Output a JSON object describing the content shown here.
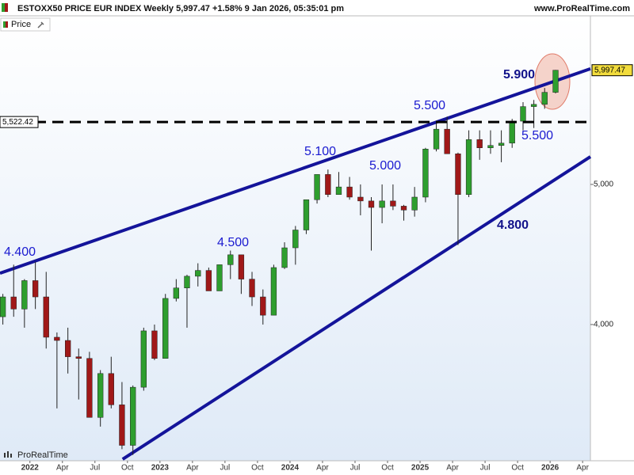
{
  "header": {
    "title": "ESTOXX50 PRICE EUR INDEX Weekly 5,997.47 +1.58% 9 Jan 2026, 05:35:01 pm",
    "site": "www.ProRealTime.com",
    "legend": "Price",
    "watermark": "ProRealTime"
  },
  "chart_data": {
    "type": "candlestick",
    "log_scale": true,
    "up_color": "#2e9e2e",
    "down_color": "#a01818",
    "x": [
      2021.792,
      2021.875,
      2021.958,
      2022.042,
      2022.125,
      2022.208,
      2022.292,
      2022.375,
      2022.458,
      2022.542,
      2022.625,
      2022.708,
      2022.792,
      2022.875,
      2022.958,
      2023.042,
      2023.125,
      2023.208,
      2023.292,
      2023.375,
      2023.458,
      2023.542,
      2023.625,
      2023.708,
      2023.792,
      2023.875,
      2023.958,
      2024.042,
      2024.125,
      2024.208,
      2024.292,
      2024.375,
      2024.458,
      2024.542,
      2024.625,
      2024.708,
      2024.792,
      2024.875,
      2024.958,
      2025.042,
      2025.125,
      2025.208,
      2025.292,
      2025.375,
      2025.458,
      2025.542,
      2025.625,
      2025.708,
      2025.792,
      2025.875,
      2025.958,
      2026.042
    ],
    "open": [
      4050,
      4180,
      4100,
      4290,
      4180,
      3920,
      3900,
      3800,
      3790,
      3450,
      3700,
      3520,
      3300,
      3620,
      3960,
      3790,
      4170,
      4240,
      4320,
      4360,
      4220,
      4400,
      4470,
      4300,
      4180,
      4060,
      4380,
      4520,
      4650,
      4880,
      5080,
      4920,
      4980,
      4900,
      4870,
      4820,
      4870,
      4830,
      4800,
      4900,
      5290,
      5460,
      5250,
      4920,
      5370,
      5300,
      5320,
      5340,
      5530,
      5660,
      5680,
      5790
    ],
    "high": [
      4200,
      4400,
      4300,
      4420,
      4350,
      3950,
      3980,
      3850,
      3830,
      3720,
      3800,
      3650,
      3630,
      3980,
      4000,
      4200,
      4300,
      4330,
      4410,
      4380,
      4400,
      4500,
      4470,
      4350,
      4230,
      4400,
      4560,
      4680,
      4880,
      5080,
      5120,
      5100,
      5060,
      5000,
      4900,
      5000,
      5000,
      4840,
      4980,
      5300,
      5520,
      5570,
      5260,
      5450,
      5450,
      5450,
      5450,
      5550,
      5700,
      5720,
      5830,
      6000
    ],
    "low": [
      4000,
      4050,
      3980,
      4100,
      3850,
      3500,
      3700,
      3550,
      3450,
      3400,
      3500,
      3280,
      3250,
      3600,
      3780,
      3790,
      4150,
      3980,
      4250,
      4250,
      4220,
      4300,
      4200,
      4120,
      4000,
      4060,
      4370,
      4400,
      4620,
      4850,
      4900,
      4920,
      4880,
      4760,
      4500,
      4700,
      4800,
      4720,
      4750,
      4860,
      5270,
      5250,
      4540,
      4900,
      5200,
      5250,
      5180,
      5300,
      5450,
      5470,
      5640,
      5780
    ],
    "close": [
      4180,
      4100,
      4290,
      4180,
      3920,
      3900,
      3800,
      3790,
      3450,
      3700,
      3520,
      3300,
      3620,
      3960,
      3790,
      4170,
      4240,
      4320,
      4360,
      4220,
      4400,
      4470,
      4300,
      4180,
      4060,
      4380,
      4520,
      4650,
      4880,
      5080,
      4920,
      4980,
      4900,
      4870,
      4820,
      4870,
      4830,
      4800,
      4900,
      5290,
      5460,
      5250,
      4920,
      5370,
      5300,
      5320,
      5340,
      5530,
      5660,
      5680,
      5790,
      5997.47
    ],
    "last_price": {
      "value": 5997.47,
      "label": "5,997.47"
    },
    "xlim": [
      2021.77,
      2026.31
    ],
    "xticks": [
      {
        "value": 2022.0,
        "label": "2022"
      },
      {
        "value": 2022.25,
        "label": "Apr"
      },
      {
        "value": 2022.5,
        "label": "Jul"
      },
      {
        "value": 2022.75,
        "label": "Oct"
      },
      {
        "value": 2023.0,
        "label": "2023"
      },
      {
        "value": 2023.25,
        "label": "Apr"
      },
      {
        "value": 2023.5,
        "label": "Jul"
      },
      {
        "value": 2023.75,
        "label": "Oct"
      },
      {
        "value": 2024.0,
        "label": "2024"
      },
      {
        "value": 2024.25,
        "label": "Apr"
      },
      {
        "value": 2024.5,
        "label": "Jul"
      },
      {
        "value": 2024.75,
        "label": "Oct"
      },
      {
        "value": 2025.0,
        "label": "2025"
      },
      {
        "value": 2025.25,
        "label": "Apr"
      },
      {
        "value": 2025.5,
        "label": "Jul"
      },
      {
        "value": 2025.75,
        "label": "Oct"
      },
      {
        "value": 2026.0,
        "label": "2026"
      },
      {
        "value": 2026.25,
        "label": "Apr"
      }
    ],
    "ylim": [
      3220,
      6540
    ],
    "yticks": [
      {
        "value": 4000,
        "label": "4,000"
      },
      {
        "value": 5000,
        "label": "5,000"
      }
    ],
    "levels": [
      {
        "value": 5522.42,
        "label": "5,522.42"
      }
    ],
    "trendlines": [
      {
        "x": [
          2021.77,
          2026.31
        ],
        "y": [
          4341,
          6011
        ],
        "color": "#14149a"
      },
      {
        "x": [
          2022.713,
          2026.31
        ],
        "y": [
          3228,
          5226
        ],
        "color": "#14149a"
      }
    ],
    "annotations": [
      "4.400",
      "4.500",
      "5.100",
      "5.000",
      "5.500",
      "5.900",
      "5.500",
      "4.800"
    ]
  }
}
